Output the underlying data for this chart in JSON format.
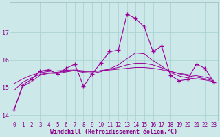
{
  "xlabel": "Windchill (Refroidissement éolien,°C)",
  "bg_color": "#cce8e8",
  "grid_color": "#aad4d4",
  "line_color": "#990099",
  "hours": [
    0,
    1,
    2,
    3,
    4,
    5,
    6,
    7,
    8,
    9,
    10,
    11,
    12,
    13,
    14,
    15,
    16,
    17,
    18,
    19,
    20,
    21,
    22,
    23
  ],
  "windchill": [
    14.2,
    15.1,
    15.3,
    15.6,
    15.65,
    15.5,
    15.7,
    15.85,
    15.05,
    15.5,
    15.9,
    16.3,
    16.35,
    17.65,
    17.5,
    17.2,
    16.3,
    16.5,
    15.45,
    15.25,
    15.3,
    15.85,
    15.7,
    15.2
  ],
  "smooth1": [
    14.2,
    15.05,
    15.22,
    15.45,
    15.52,
    15.52,
    15.57,
    15.62,
    15.55,
    15.52,
    15.58,
    15.68,
    15.82,
    16.05,
    16.25,
    16.22,
    15.98,
    15.78,
    15.55,
    15.42,
    15.35,
    15.32,
    15.28,
    15.22
  ],
  "smooth2": [
    14.9,
    15.2,
    15.35,
    15.48,
    15.53,
    15.56,
    15.59,
    15.62,
    15.58,
    15.57,
    15.62,
    15.67,
    15.73,
    15.82,
    15.88,
    15.88,
    15.82,
    15.72,
    15.6,
    15.5,
    15.43,
    15.38,
    15.32,
    15.25
  ],
  "smooth3": [
    15.15,
    15.32,
    15.45,
    15.54,
    15.59,
    15.61,
    15.63,
    15.64,
    15.61,
    15.59,
    15.61,
    15.64,
    15.67,
    15.7,
    15.73,
    15.73,
    15.7,
    15.65,
    15.58,
    15.52,
    15.47,
    15.43,
    15.38,
    15.3
  ],
  "ylim": [
    13.8,
    18.1
  ],
  "yticks": [
    14,
    15,
    16,
    17
  ],
  "marker_style": "+",
  "marker_size": 4,
  "tick_fontsize": 5.5,
  "xlabel_fontsize": 6.0
}
